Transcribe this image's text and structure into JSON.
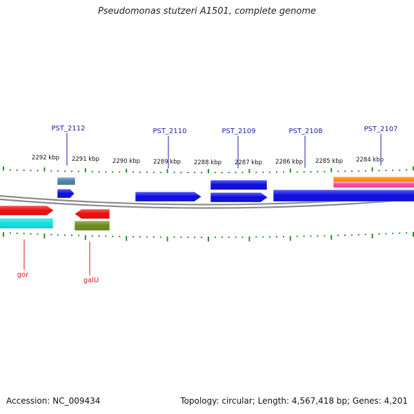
{
  "title": "Pseudomonas stutzeri A1501, complete genome",
  "accession_text": "Accession: NC_009434",
  "summary_text": "Topology: circular; Length: 4,567,418 bp; Genes: 4,201",
  "colors": {
    "background": "#ffffff",
    "backbone": "#8a8a8a",
    "ticks": "#2a8a2a",
    "upper_label": "#1a1aa0",
    "lower_label": "#cc1a1a"
  },
  "scale_labels": [
    "2292 kbp",
    "2291 kbp",
    "2290 kbp",
    "2289 kbp",
    "2288 kbp",
    "2287 kbp",
    "2286 kbp",
    "2285 kbp",
    "2284 kbp"
  ],
  "genes_upper": [
    {
      "id": "PST_2112",
      "label": "PST_2112",
      "color": "#4a7fa8"
    },
    {
      "id": "PST_2112-cds",
      "label": "",
      "color": "#0a0ae0"
    },
    {
      "id": "PST_2110",
      "label": "PST_2110",
      "color": "#0a0ae0"
    },
    {
      "id": "PST_2109",
      "label": "PST_2109",
      "color": "#0a0ae0"
    },
    {
      "id": "PST_2109-cds",
      "label": "",
      "color": "#0a0ae0"
    },
    {
      "id": "PST_2108",
      "label": "PST_2108",
      "color": "#0a0ae0"
    },
    {
      "id": "PST_2107",
      "label": "PST_2107",
      "color": "#ff8c00"
    },
    {
      "id": "PST_2107-b",
      "label": "",
      "color": "#ff40a0"
    }
  ],
  "genes_lower": [
    {
      "id": "gor",
      "label": "gor",
      "color": "#ee0a0a"
    },
    {
      "id": "gor-cds",
      "label": "",
      "color": "#10e0e0"
    },
    {
      "id": "galU",
      "label": "galU",
      "color": "#ee0a0a"
    },
    {
      "id": "galU-cds",
      "label": "",
      "color": "#6b8a1a"
    }
  ]
}
